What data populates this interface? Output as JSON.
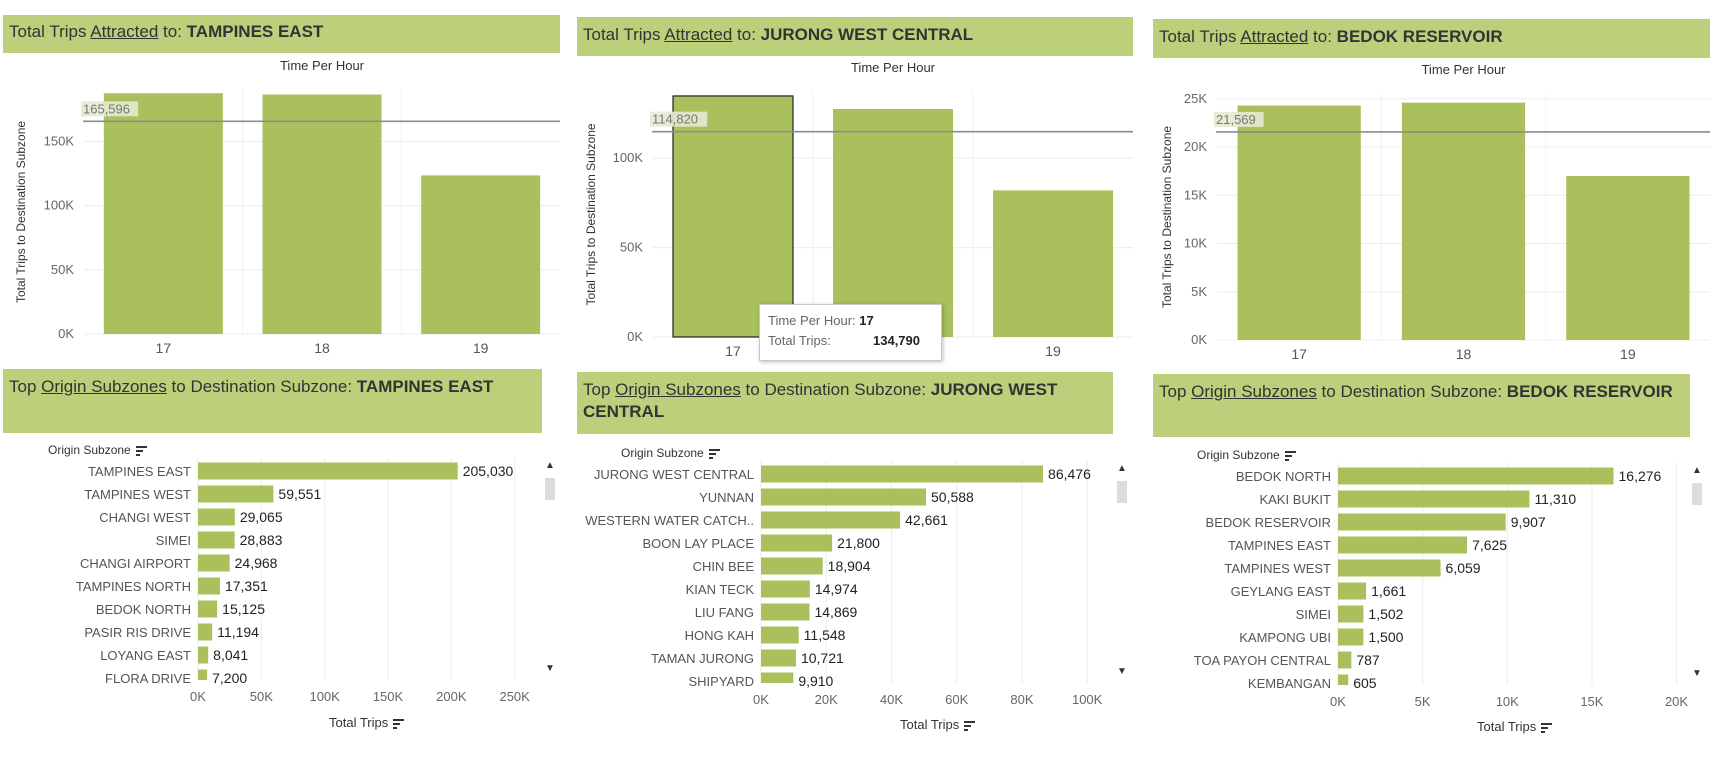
{
  "top_titles": [
    {
      "prefix": "Total Trips ",
      "underlined": "Attracted",
      "mid": " to: ",
      "subzone": "TAMPINES EAST"
    },
    {
      "prefix": "Total Trips ",
      "underlined": "Attracted",
      "mid": " to: ",
      "subzone": "JURONG WEST CENTRAL"
    },
    {
      "prefix": "Total Trips ",
      "underlined": "Attracted",
      "mid": " to: ",
      "subzone": "BEDOK RESERVOIR"
    }
  ],
  "bottom_titles": [
    {
      "prefix": "Top ",
      "underlined": "Origin Subzones",
      "mid": " to Destination Subzone: ",
      "subzone": "TAMPINES EAST"
    },
    {
      "prefix": "Top ",
      "underlined": "Origin Subzones",
      "mid": " to Destination Subzone: ",
      "subzone": "JURONG WEST CENTRAL"
    },
    {
      "prefix": "Top ",
      "underlined": "Origin Subzones",
      "mid": " to Destination Subzone: ",
      "subzone": "BEDOK RESERVOIR"
    }
  ],
  "labels": {
    "col_header": "Time Per Hour",
    "y_axis": "Total Trips to Destination Subzone",
    "row_header": "Origin Subzone",
    "x_axis": "Total Trips"
  },
  "tooltip": {
    "k1": "Time Per Hour:",
    "v1": "17",
    "k2": "Total Trips:",
    "v2": "134,790"
  },
  "colors": {
    "bar": "#a9c05d",
    "title_bg": "#bccf7b",
    "ref_line": "#8c8c8c",
    "grid": "#ececec"
  },
  "chart_data": [
    {
      "type": "bar",
      "title": "Total Trips Attracted to: TAMPINES EAST",
      "xlabel": "Time Per Hour",
      "ylabel": "Total Trips to Destination Subzone",
      "categories": [
        "17",
        "18",
        "19"
      ],
      "values": [
        187500,
        186500,
        123500
      ],
      "ylim": [
        0,
        190000
      ],
      "yticks": [
        0,
        50000,
        100000,
        150000
      ],
      "ytick_labels": [
        "0K",
        "50K",
        "100K",
        "150K"
      ],
      "reference_line": {
        "value": 165596,
        "label": "165,596"
      },
      "grid": true
    },
    {
      "type": "bar",
      "title": "Total Trips Attracted to: JURONG WEST CENTRAL",
      "xlabel": "Time Per Hour",
      "ylabel": "Total Trips to Destination Subzone",
      "categories": [
        "17",
        "18",
        "19"
      ],
      "values": [
        134790,
        127500,
        82000
      ],
      "ylim": [
        0,
        137000
      ],
      "yticks": [
        0,
        50000,
        100000
      ],
      "ytick_labels": [
        "0K",
        "50K",
        "100K"
      ],
      "reference_line": {
        "value": 114820,
        "label": "114,820"
      },
      "highlighted_index": 0,
      "grid": true
    },
    {
      "type": "bar",
      "title": "Total Trips Attracted to: BEDOK RESERVOIR",
      "xlabel": "Time Per Hour",
      "ylabel": "Total Trips to Destination Subzone",
      "categories": [
        "17",
        "18",
        "19"
      ],
      "values": [
        24300,
        24600,
        17000
      ],
      "ylim": [
        0,
        25500
      ],
      "yticks": [
        0,
        5000,
        10000,
        15000,
        20000,
        25000
      ],
      "ytick_labels": [
        "0K",
        "5K",
        "10K",
        "15K",
        "20K",
        "25K"
      ],
      "reference_line": {
        "value": 21569,
        "label": "21,569"
      },
      "grid": true
    },
    {
      "type": "bar",
      "orientation": "horizontal",
      "title": "Top Origin Subzones to Destination Subzone: TAMPINES EAST",
      "ylabel": "Origin Subzone",
      "xlabel": "Total Trips",
      "categories": [
        "TAMPINES EAST",
        "TAMPINES WEST",
        "CHANGI WEST",
        "SIMEI",
        "CHANGI AIRPORT",
        "TAMPINES NORTH",
        "BEDOK NORTH",
        "PASIR RIS DRIVE",
        "LOYANG EAST",
        "FLORA DRIVE"
      ],
      "values": [
        205030,
        59551,
        29065,
        28883,
        24968,
        17351,
        15125,
        11194,
        8041,
        7200
      ],
      "value_labels": [
        "205,030",
        "59,551",
        "29,065",
        "28,883",
        "24,968",
        "17,351",
        "15,125",
        "11,194",
        "8,041",
        "7,200"
      ],
      "xlim": [
        0,
        270000
      ],
      "xticks": [
        0,
        50000,
        100000,
        150000,
        200000,
        250000
      ],
      "xtick_labels": [
        "0K",
        "50K",
        "100K",
        "150K",
        "200K",
        "250K"
      ],
      "grid": true
    },
    {
      "type": "bar",
      "orientation": "horizontal",
      "title": "Top Origin Subzones to Destination Subzone: JURONG WEST CENTRAL",
      "ylabel": "Origin Subzone",
      "xlabel": "Total Trips",
      "categories": [
        "JURONG WEST CENTRAL",
        "YUNNAN",
        "WESTERN WATER CATCH..",
        "BOON LAY PLACE",
        "CHIN BEE",
        "KIAN TECK",
        "LIU FANG",
        "HONG KAH",
        "TAMAN JURONG",
        "SHIPYARD"
      ],
      "values": [
        86476,
        50588,
        42661,
        21800,
        18904,
        14974,
        14869,
        11548,
        10721,
        9910
      ],
      "value_labels": [
        "86,476",
        "50,588",
        "42,661",
        "21,800",
        "18,904",
        "14,974",
        "14,869",
        "11,548",
        "10,721",
        "9,910"
      ],
      "xlim": [
        0,
        107000
      ],
      "xticks": [
        0,
        20000,
        40000,
        60000,
        80000,
        100000
      ],
      "xtick_labels": [
        "0K",
        "20K",
        "40K",
        "60K",
        "80K",
        "100K"
      ],
      "grid": true
    },
    {
      "type": "bar",
      "orientation": "horizontal",
      "title": "Top Origin Subzones to Destination Subzone: BEDOK RESERVOIR",
      "ylabel": "Origin Subzone",
      "xlabel": "Total Trips",
      "categories": [
        "BEDOK NORTH",
        "KAKI BUKIT",
        "BEDOK RESERVOIR",
        "TAMPINES EAST",
        "TAMPINES WEST",
        "GEYLANG EAST",
        "SIMEI",
        "KAMPONG UBI",
        "TOA PAYOH CENTRAL",
        "KEMBANGAN"
      ],
      "values": [
        16276,
        11310,
        9907,
        7625,
        6059,
        1661,
        1502,
        1500,
        787,
        605
      ],
      "value_labels": [
        "16,276",
        "11,310",
        "9,907",
        "7,625",
        "6,059",
        "1,661",
        "1,502",
        "1,500",
        "787",
        "605"
      ],
      "xlim": [
        0,
        20500
      ],
      "xticks": [
        0,
        5000,
        10000,
        15000,
        20000
      ],
      "xtick_labels": [
        "0K",
        "5K",
        "10K",
        "15K",
        "20K"
      ],
      "grid": true
    }
  ]
}
